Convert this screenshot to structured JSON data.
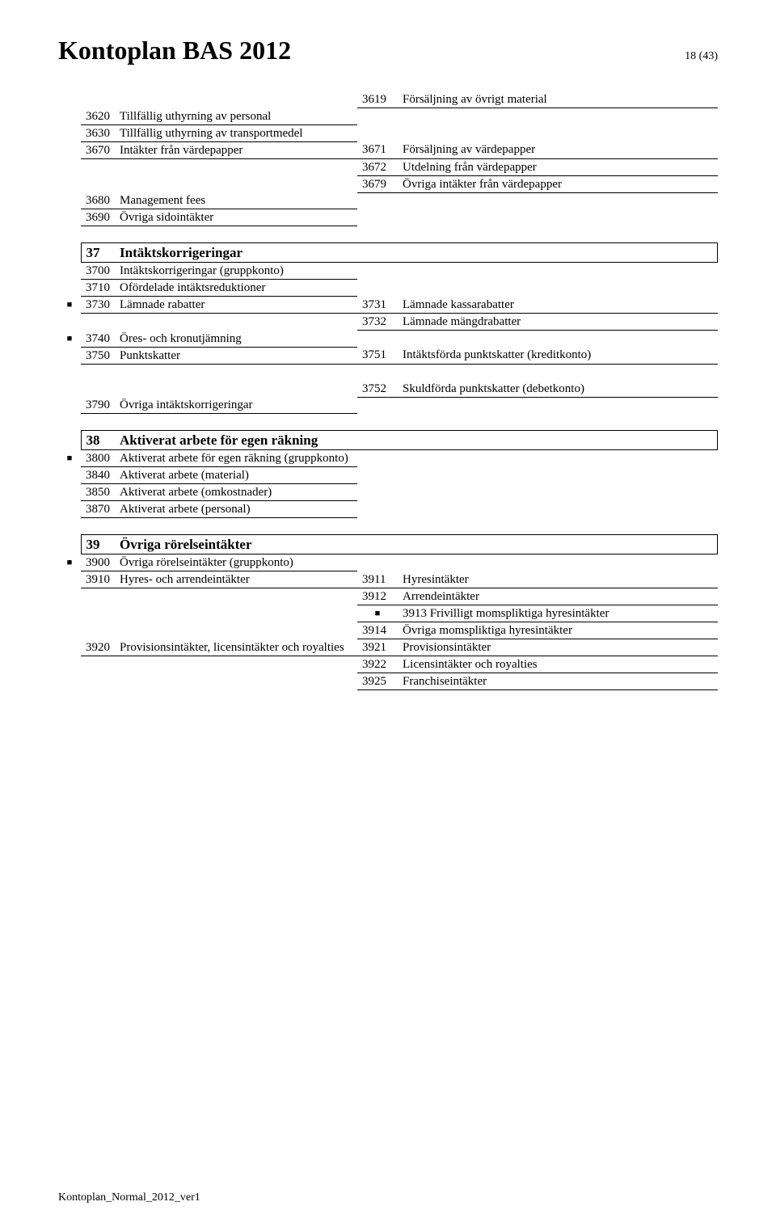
{
  "header": {
    "title": "Kontoplan BAS 2012",
    "page_number": "18 (43)"
  },
  "footer": "Kontoplan_Normal_2012_ver1",
  "bullet_glyph": "■",
  "block1": {
    "rows": [
      {
        "bullet": false,
        "code": "",
        "desc": "",
        "rcode": "3619",
        "rdesc": "Försäljning av övrigt material"
      },
      {
        "bullet": false,
        "code": "3620",
        "desc": "Tillfällig uthyrning av personal",
        "rcode": "",
        "rdesc": ""
      },
      {
        "bullet": false,
        "code": "3630",
        "desc": "Tillfällig uthyrning av transportmedel",
        "rcode": "",
        "rdesc": ""
      },
      {
        "bullet": false,
        "code": "3670",
        "desc": "Intäkter från värdepapper",
        "rcode": "3671",
        "rdesc": "Försäljning av värdepapper"
      },
      {
        "bullet": false,
        "code": "",
        "desc": "",
        "rcode": "3672",
        "rdesc": "Utdelning från värdepapper"
      },
      {
        "bullet": false,
        "code": "",
        "desc": "",
        "rcode": "3679",
        "rdesc": "Övriga intäkter från värdepapper"
      },
      {
        "bullet": false,
        "code": "3680",
        "desc": "Management fees",
        "rcode": "",
        "rdesc": ""
      },
      {
        "bullet": false,
        "code": "3690",
        "desc": "Övriga sidointäkter",
        "rcode": "",
        "rdesc": ""
      }
    ]
  },
  "section37": {
    "code": "37",
    "title": "Intäktskorrigeringar",
    "rows": [
      {
        "bullet": false,
        "code": "3700",
        "desc": "Intäktskorrigeringar (gruppkonto)",
        "rcode": "",
        "rdesc": ""
      },
      {
        "bullet": false,
        "code": "3710",
        "desc": "Ofördelade intäktsreduktioner",
        "rcode": "",
        "rdesc": ""
      },
      {
        "bullet": true,
        "code": "3730",
        "desc": "Lämnade rabatter",
        "rcode": "3731",
        "rdesc": "Lämnade kassarabatter"
      },
      {
        "bullet": false,
        "code": "",
        "desc": "",
        "rcode": "3732",
        "rdesc": "Lämnade mängdrabatter"
      },
      {
        "bullet": true,
        "code": "3740",
        "desc": "Öres- och kronutjämning",
        "rcode": "",
        "rdesc": ""
      },
      {
        "bullet": false,
        "code": "3750",
        "desc": "Punktskatter",
        "rcode": "3751",
        "rdesc": "Intäktsförda punktskatter (kreditkonto)"
      }
    ],
    "rows2": [
      {
        "bullet": false,
        "code": "",
        "desc": "",
        "rcode": "3752",
        "rdesc": "Skuldförda punktskatter (debetkonto)"
      },
      {
        "bullet": false,
        "code": "3790",
        "desc": "Övriga intäktskorrigeringar",
        "rcode": "",
        "rdesc": ""
      }
    ]
  },
  "section38": {
    "code": "38",
    "title": "Aktiverat arbete för egen räkning",
    "rows": [
      {
        "bullet": true,
        "code": "3800",
        "desc": "Aktiverat arbete för egen räkning (gruppkonto)",
        "rcode": "",
        "rdesc": ""
      },
      {
        "bullet": false,
        "code": "3840",
        "desc": "Aktiverat arbete (material)",
        "rcode": "",
        "rdesc": ""
      },
      {
        "bullet": false,
        "code": "3850",
        "desc": "Aktiverat arbete (omkostnader)",
        "rcode": "",
        "rdesc": ""
      },
      {
        "bullet": false,
        "code": "3870",
        "desc": "Aktiverat arbete (personal)",
        "rcode": "",
        "rdesc": ""
      }
    ]
  },
  "section39": {
    "code": "39",
    "title": "Övriga rörelseintäkter",
    "rows": [
      {
        "bullet": true,
        "code": "3900",
        "desc": "Övriga rörelseintäkter (gruppkonto)",
        "rcode": "",
        "rdesc": ""
      },
      {
        "bullet": false,
        "code": "3910",
        "desc": "Hyres- och arrendeintäkter",
        "rcode": "3911",
        "rdesc": "Hyresintäkter"
      },
      {
        "bullet": false,
        "code": "",
        "desc": "",
        "rcode": "3912",
        "rdesc": "Arrendeintäkter"
      },
      {
        "bullet": false,
        "code": "",
        "desc": "",
        "rbullet": true,
        "rcode": "3913",
        "rdesc": "Frivilligt momspliktiga hyresintäkter"
      },
      {
        "bullet": false,
        "code": "",
        "desc": "",
        "rcode": "3914",
        "rdesc": "Övriga momspliktiga hyresintäkter"
      },
      {
        "bullet": false,
        "code": "3920",
        "desc": "Provisionsintäkter, licensintäkter och royalties",
        "rcode": "3921",
        "rdesc": "Provisionsintäkter"
      },
      {
        "bullet": false,
        "code": "",
        "desc": "",
        "rcode": "3922",
        "rdesc": "Licensintäkter och royalties"
      },
      {
        "bullet": false,
        "code": "",
        "desc": "",
        "rcode": "3925",
        "rdesc": "Franchiseintäkter"
      }
    ]
  }
}
